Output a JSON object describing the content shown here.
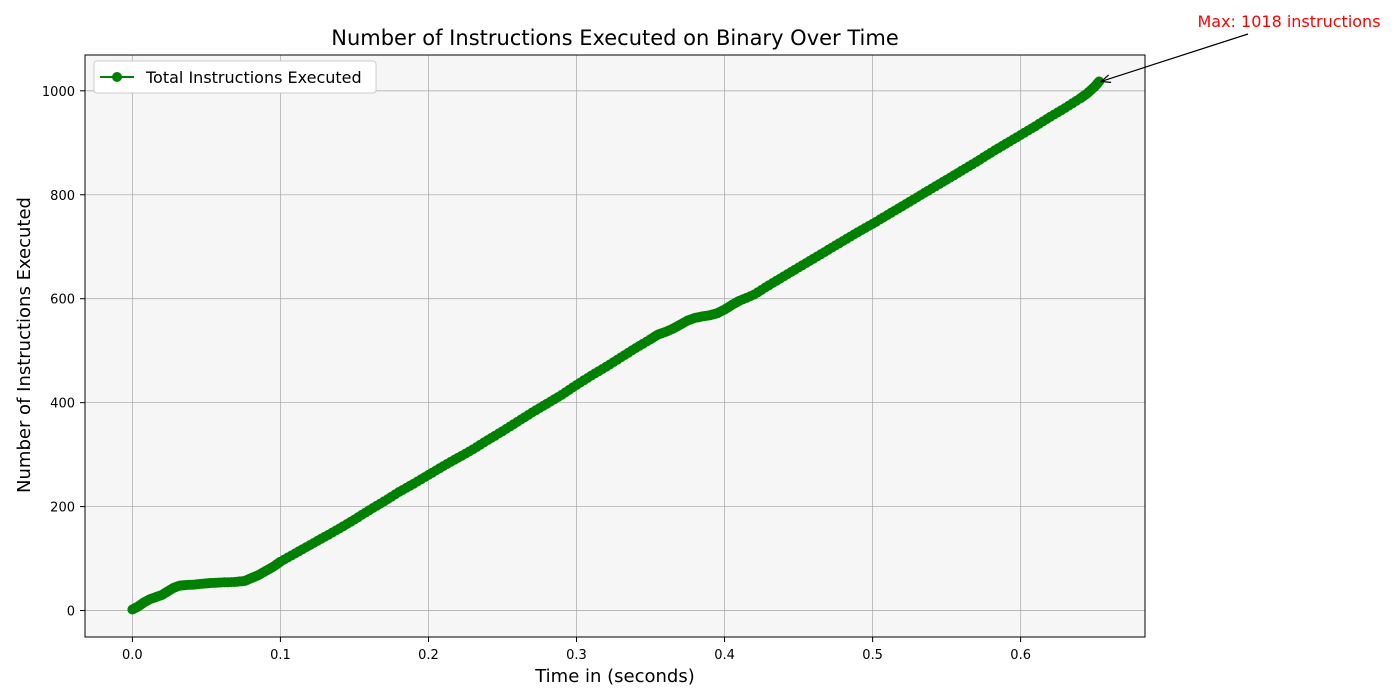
{
  "chart_data": {
    "type": "line",
    "title": "Number of Instructions Executed on Binary Over Time",
    "xlabel": "Time in (seconds)",
    "ylabel": "Number of Instructions Executed",
    "xlim": [
      -0.032,
      0.684
    ],
    "ylim": [
      -50.9,
      1068.9
    ],
    "xticks": [
      0.0,
      0.1,
      0.2,
      0.3,
      0.4,
      0.5,
      0.6
    ],
    "xtick_labels": [
      "0.0",
      "0.1",
      "0.2",
      "0.3",
      "0.4",
      "0.5",
      "0.6"
    ],
    "yticks": [
      0,
      200,
      400,
      600,
      800,
      1000
    ],
    "ytick_labels": [
      "0",
      "200",
      "400",
      "600",
      "800",
      "1000"
    ],
    "grid": true,
    "legend_position": "top-left",
    "background_color": "#f6f6f6",
    "series": [
      {
        "name": "Total Instructions Executed",
        "color": "#008000",
        "marker": "circle",
        "x": [
          0.0,
          0.004,
          0.008,
          0.012,
          0.016,
          0.02,
          0.024,
          0.028,
          0.032,
          0.036,
          0.042,
          0.049,
          0.053,
          0.06,
          0.069,
          0.076,
          0.08,
          0.085,
          0.09,
          0.095,
          0.1,
          0.11,
          0.12,
          0.13,
          0.14,
          0.15,
          0.16,
          0.17,
          0.18,
          0.19,
          0.2,
          0.21,
          0.22,
          0.23,
          0.24,
          0.25,
          0.26,
          0.27,
          0.28,
          0.29,
          0.3,
          0.31,
          0.32,
          0.33,
          0.34,
          0.35,
          0.355,
          0.36,
          0.365,
          0.37,
          0.375,
          0.38,
          0.385,
          0.39,
          0.395,
          0.4,
          0.405,
          0.41,
          0.42,
          0.43,
          0.44,
          0.45,
          0.46,
          0.47,
          0.48,
          0.49,
          0.5,
          0.51,
          0.52,
          0.53,
          0.54,
          0.55,
          0.56,
          0.57,
          0.58,
          0.59,
          0.6,
          0.61,
          0.62,
          0.63,
          0.64,
          0.645,
          0.65,
          0.653
        ],
        "y": [
          2,
          8,
          16,
          22,
          26,
          30,
          37,
          44,
          48,
          49,
          50,
          52,
          53,
          54,
          55,
          57,
          62,
          68,
          76,
          84,
          94,
          110,
          126,
          142,
          158,
          175,
          193,
          210,
          228,
          244,
          261,
          278,
          294,
          310,
          328,
          345,
          363,
          381,
          398,
          415,
          434,
          452,
          469,
          487,
          505,
          522,
          531,
          536,
          542,
          550,
          558,
          563,
          566,
          568,
          572,
          579,
          588,
          596,
          608,
          626,
          643,
          660,
          677,
          694,
          711,
          728,
          744,
          761,
          778,
          795,
          812,
          829,
          846,
          863,
          881,
          898,
          915,
          932,
          950,
          967,
          985,
          995,
          1008,
          1018
        ]
      }
    ],
    "annotation": {
      "text": "Max: 1018 instructions",
      "x": 0.653,
      "y": 1018,
      "color": "#ff0000"
    }
  }
}
